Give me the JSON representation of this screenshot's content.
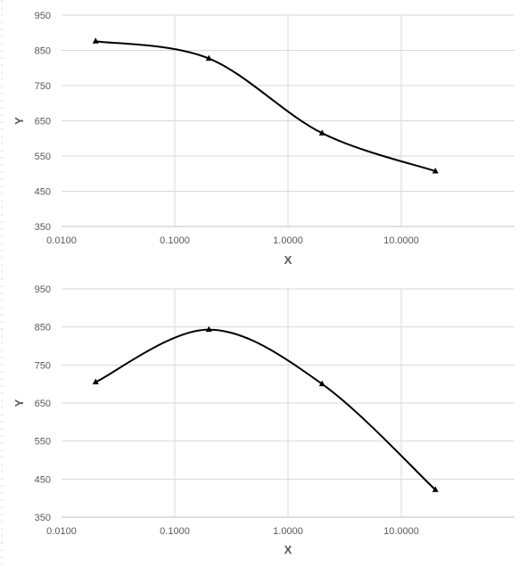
{
  "chart_data": [
    {
      "type": "line",
      "title": "",
      "xlabel": "X",
      "ylabel": "Y",
      "xscale": "log",
      "xlim": [
        0.01,
        100
      ],
      "ylim": [
        350,
        950
      ],
      "xticks": [
        "0.0100",
        "0.1000",
        "1.0000",
        "10.0000"
      ],
      "yticks": [
        "950",
        "850",
        "750",
        "650",
        "550",
        "450",
        "350"
      ],
      "grid": true,
      "legend": "none",
      "marker": "triangle",
      "line_color": "#000000",
      "series": [
        {
          "x": [
            0.02,
            0.2,
            2,
            20
          ],
          "y": [
            876,
            827,
            615,
            507
          ]
        }
      ]
    },
    {
      "type": "line",
      "title": "",
      "xlabel": "X",
      "ylabel": "Y",
      "xscale": "log",
      "xlim": [
        0.01,
        100
      ],
      "ylim": [
        350,
        950
      ],
      "xticks": [
        "0.0100",
        "0.1000",
        "1.0000",
        "10.0000"
      ],
      "yticks": [
        "950",
        "850",
        "750",
        "650",
        "550",
        "450",
        "350"
      ],
      "grid": true,
      "legend": "none",
      "marker": "triangle",
      "line_color": "#000000",
      "series": [
        {
          "x": [
            0.02,
            0.2,
            2,
            20
          ],
          "y": [
            705,
            843,
            700,
            422
          ]
        }
      ]
    }
  ]
}
